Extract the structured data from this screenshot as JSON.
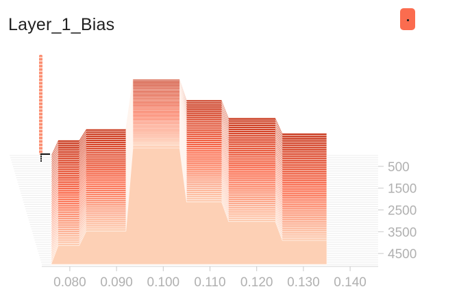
{
  "header": {
    "title": "Layer_1_Bias",
    "toggle_icon": "dot-icon",
    "accent_color": "#fb6c4f"
  },
  "chart_data": {
    "type": "area",
    "title": "Layer_1_Bias",
    "xlabel": "",
    "ylabel": "",
    "xlim": [
      0.074,
      0.146
    ],
    "x_ticks": [
      0.08,
      0.09,
      0.1,
      0.11,
      0.12,
      0.13,
      0.14
    ],
    "x_tick_labels": [
      "0.080",
      "0.090",
      "0.100",
      "0.110",
      "0.120",
      "0.130",
      "0.140"
    ],
    "step_ticks": [
      500,
      1500,
      2500,
      3500,
      4500
    ],
    "step_tick_labels": [
      "500",
      "1500",
      "2500",
      "3500",
      "4500"
    ],
    "step_range": [
      0,
      5000
    ],
    "series_count": 50,
    "color_scale": [
      "#fdd0b5",
      "#fb6c4f",
      "#c8391f"
    ],
    "distributions": [
      {
        "step": 0,
        "x": [
          0.076,
          0.0775,
          0.082,
          0.0835,
          0.092,
          0.0935,
          0.1035,
          0.105,
          0.1125,
          0.114,
          0.124,
          0.1255,
          0.135
        ],
        "y": [
          0,
          0.9,
          0.9,
          1.55,
          1.55,
          4.45,
          4.45,
          3.25,
          3.25,
          2.2,
          2.2,
          1.3,
          1.3
        ]
      },
      {
        "step": 2500,
        "x": [
          0.076,
          0.0775,
          0.082,
          0.0835,
          0.092,
          0.0935,
          0.1035,
          0.105,
          0.1125,
          0.114,
          0.124,
          0.1255,
          0.135
        ],
        "y": [
          0,
          1.0,
          1.0,
          1.75,
          1.75,
          5.6,
          5.6,
          3.45,
          3.45,
          2.35,
          2.35,
          1.35,
          1.35
        ]
      },
      {
        "step": 4900,
        "x": [
          0.076,
          0.0775,
          0.082,
          0.0835,
          0.092,
          0.0935,
          0.1035,
          0.105,
          0.1125,
          0.114,
          0.124,
          0.1255,
          0.135
        ],
        "y": [
          0,
          1.1,
          1.1,
          1.95,
          1.95,
          6.8,
          6.8,
          3.65,
          3.65,
          2.5,
          2.5,
          1.4,
          1.4
        ]
      }
    ]
  }
}
